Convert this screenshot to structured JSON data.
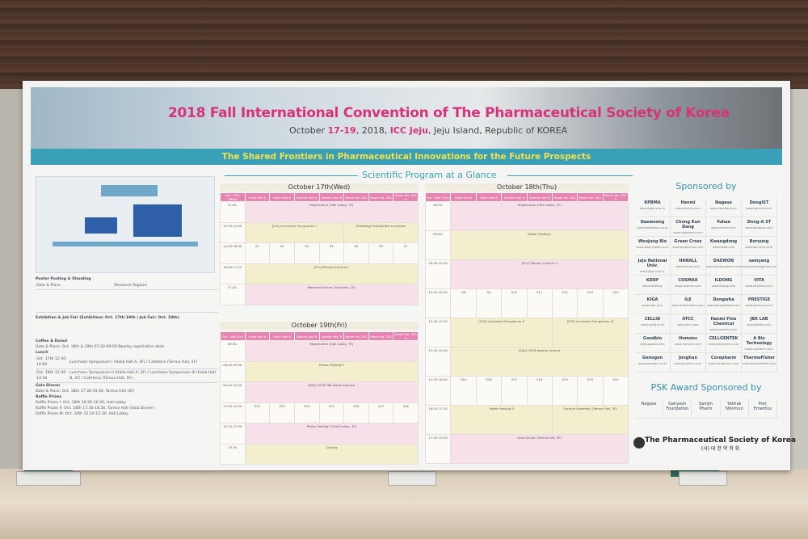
{
  "header": {
    "title": "2018 Fall International Convention of  The Pharmaceutical Society of Korea",
    "date_prefix": "October ",
    "dates": "17-19",
    "year": ", 2018, ",
    "venue": "ICC Jeju",
    "location": ", Jeju Island, Republic of KOREA",
    "theme": "The Shared Frontiers in Pharmaceutical Innovations for the Future Prospects"
  },
  "program": {
    "title": "Scientific Program at a Glance",
    "days": [
      {
        "label": "October 17th(Wed)",
        "header": [
          "Oct. 17th (Wed)",
          "Halla Hall A",
          "Halla Hall B",
          "Samda Hall A",
          "Samda Hall B",
          "Room No. 301",
          "Room No. 302",
          "Room No. 303 A"
        ],
        "rows": [
          [
            "11:30-",
            "Registration (Hall Lobby, 3F)"
          ],
          [
            "12:30-14:00",
            "[LS1] Luncheon Symposium I",
            "[Meeting] Presidential Luncheon"
          ],
          [
            "14:30-16:30",
            "S1",
            "S2",
            "S3",
            "S4",
            "S5",
            "S6",
            "S7"
          ],
          [
            "16:40-17:10",
            "[PL1] Plenary Lecture I"
          ],
          [
            "17:20-",
            "Welcome Dinner (Sheraton, 2F)"
          ]
        ]
      },
      {
        "label": "October 18th(Thu)",
        "header": [
          "Oct. 18th (Thu)",
          "Halla Hall A",
          "Halla Hall B",
          "Samda Hall A",
          "Samda Hall B",
          "Room No. 301",
          "Room No. 302",
          "Room No. 303 A"
        ],
        "rows": [
          [
            "08:30-",
            "Registration (Hall Lobby, 3F)"
          ],
          [
            "09:00-",
            "Poster Posting I"
          ],
          [
            "09:40-10:20",
            "[PL2] Plenary Lecture II"
          ],
          [
            "10:30-12:20",
            "S8",
            "S9",
            "S10",
            "S11",
            "S12",
            "S13",
            "S14"
          ],
          [
            "12:30-13:30",
            "[LS2] Luncheon Symposium II",
            "[LS3] Luncheon Symposium III"
          ],
          [
            "13:40-14:20",
            "[SAL] 2018 Awards Lecture"
          ],
          [
            "14:30-16:20",
            "S15",
            "S16",
            "S17",
            "S18",
            "S19",
            "S20",
            "S21"
          ],
          [
            "16:20-17:20",
            "Poster Posting II",
            "General Assembly (Tamna Hall, 5F)"
          ],
          [
            "17:30-19:30",
            "Gala Dinner (Tamna Hall, 5F)"
          ]
        ]
      },
      {
        "label": "October 19th(Fri)",
        "header": [
          "Oct. 19th (Fri)",
          "Halla Hall A",
          "Halla Hall B",
          "Samda Hall A",
          "Samda Hall B",
          "Room No. 301",
          "Room No. 302",
          "Room No. 303 A"
        ],
        "rows": [
          [
            "08:30-",
            "Registration (Hall Lobby, 3F)"
          ],
          [
            "08:40-09:30",
            "Poster Posting II"
          ],
          [
            "09:40-10:20",
            "[PAL] 2018 PSK Award Lecture"
          ],
          [
            "10:30-12:20",
            "S22",
            "S23",
            "S24",
            "S25",
            "S26",
            "S27",
            "S28"
          ],
          [
            "12:30-13:30",
            "Poster Posting II (Hall Lobby, 3F)"
          ],
          [
            "13:30",
            "Closing"
          ]
        ]
      }
    ]
  },
  "left": {
    "poster": "Poster Posting & Standing",
    "date_place": "Date & Place",
    "research": "Research Regions",
    "exhibition": "Exhibition & Job Fair (Exhibition: Oct. 17th-19th | Job Fair: Oct. 18th)",
    "coffee": "Coffee & Donut",
    "coffee_text": "Date & Place: Oct. 18th & 19th 07:30-09:00 Nearby registration desk",
    "lunch": "Lunch",
    "lunch_rows": [
      [
        "Oct. 17th 12:30-14:00",
        "Luncheon Symposium I (Halla Hall A, 3F) / Cafeteria (Tamna Hall, 5F)"
      ],
      [
        "Oct. 18th 12:30-13:30",
        "Luncheon Symposium II (Halla Hall A, 3F) / Luncheon Symposium III (Halla Hall B, 3F) / Cafeteria (Tamna Hall, 5F)"
      ]
    ],
    "gala": "Gala Dinner",
    "gala_text": "Date & Place: Oct. 18th 17:30-19:30, Tamna Hall (5F)",
    "raffle": "Raffle Prizes",
    "raffle_rows": [
      "Raffle Prizes I: Oct. 18th 16:20-16:30, Hall Lobby",
      "Raffle Prizes II: Oct. 18th 17:30-18:30, Tamna Hall (Gala Dinner)",
      "Raffle Prizes III: Oct. 19th 12:20-12:30, Hall Lobby"
    ]
  },
  "sponsors": {
    "title": "Sponsored by",
    "items": [
      [
        "KPBMA",
        "www.kpbma.or.kr"
      ],
      [
        "Hanmi",
        "www.hanmi.co.kr"
      ],
      [
        "Nagase",
        "www.handok.co.kr"
      ],
      [
        "DongIST",
        "www.dongist.co.kr"
      ],
      [
        "Daewoong",
        "www.daewoong.co.kr"
      ],
      [
        "Chong Kun Dang",
        "www.ckdpharm.com"
      ],
      [
        "Yuhan",
        "www.yuhan.co.kr"
      ],
      [
        "Dong-A ST",
        "www.donga-st.com"
      ],
      [
        "Woojung Bio",
        "www.woojungbio.co.kr"
      ],
      [
        "Green Cross",
        "www.greencross.com"
      ],
      [
        "Kwangdong",
        "www.ekdp.com"
      ],
      [
        "Boryung",
        "www.boryung.co.kr"
      ],
      [
        "Jeju National Univ.",
        "www.jejunu.ac.kr"
      ],
      [
        "HANALL",
        "www.hanall.co.kr"
      ],
      [
        "DAEWON",
        "www.daewonpharm.com"
      ],
      [
        "samyang",
        "www.samyangpharm.com"
      ],
      [
        "KDDF",
        "www.kddf.org"
      ],
      [
        "COSMAX",
        "www.cosmax.com"
      ],
      [
        "ILDONG",
        "www.ildong.com"
      ],
      [
        "VITA",
        "www.vitamed.co.kr"
      ],
      [
        "KIGA",
        "www.kiga.or.kr"
      ],
      [
        "ILE",
        "www.anthemtech.com"
      ],
      [
        "Dongwha",
        "www.dongwhabio.com"
      ],
      [
        "PRESTIGE",
        "www.platinne.co.kr"
      ],
      [
        "CELLID",
        "www.cellid.co.kr"
      ],
      [
        "ATCC",
        "www.atcc.com"
      ],
      [
        "Hanmi Fine Chemical",
        "www.hanmifc.co.kr"
      ],
      [
        "JBK LAB",
        "www.jbklab.co.kr"
      ],
      [
        "Goodbio",
        "www.gaabio.com"
      ],
      [
        "Humons",
        "www.humons.com"
      ],
      [
        "CELLGENTEK",
        "www.cellgentek.co.kr"
      ],
      [
        "A Bio Technology",
        "www.nupharm.com"
      ],
      [
        "Genogen",
        "www.genogen.co.kr"
      ],
      [
        "Jonghun",
        "www.jonghun.co.kr"
      ],
      [
        "Corepharm",
        "www.corepharm.com"
      ],
      [
        "ThermoFisher",
        "www.thermofisher.com"
      ]
    ]
  },
  "psk": {
    "title": "PSK Award Sponsored by",
    "items": [
      "Nagase",
      "Gahyeon Foundation",
      "Samjin Pharm",
      "Yakhak Shinmun",
      "Prof. Emeritus"
    ]
  },
  "org": {
    "name": "The Pharmaceutical Society of Korea",
    "korean": "(사) 대 한 약 학 회"
  },
  "colors": {
    "title": "#d6337a",
    "band": "#3aa0b8",
    "theme_text": "#f4e14a",
    "table_header": "#e884b0"
  }
}
